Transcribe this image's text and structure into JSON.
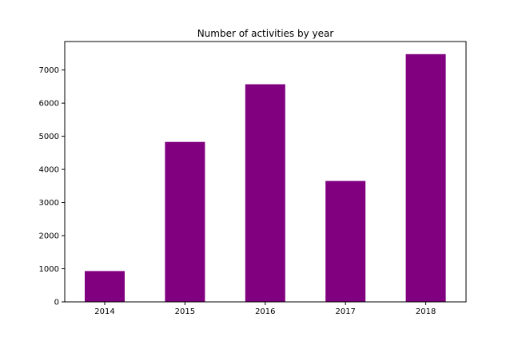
{
  "chart_data": {
    "type": "bar",
    "title": "Number of activities by year",
    "xlabel": "",
    "ylabel": "",
    "categories": [
      "2014",
      "2015",
      "2016",
      "2017",
      "2018"
    ],
    "values": [
      930,
      4830,
      6570,
      3650,
      7480
    ],
    "ylim": [
      0,
      7860
    ],
    "yticks": [
      0,
      1000,
      2000,
      3000,
      4000,
      5000,
      6000,
      7000
    ],
    "grid": false,
    "legend": "none",
    "bar_color": "#800080"
  }
}
